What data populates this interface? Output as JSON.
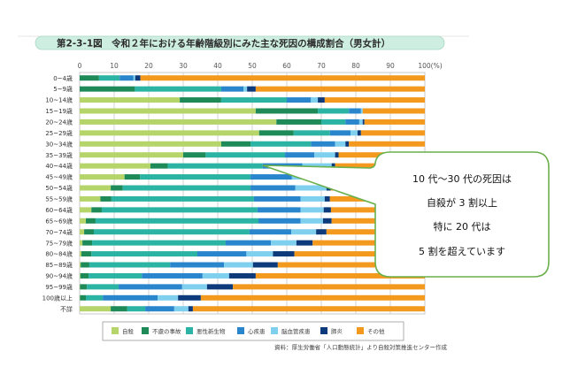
{
  "figure": {
    "title": "第2-3-1図　令和２年における年齢階級別にみた主な死因の構成割合（男女計）",
    "source": "資料：厚生労働省「人口動態統計」より自殺対策推進センター作成"
  },
  "callout": {
    "lines": [
      "10 代～30 代の死因は",
      "自殺が 3 割以上",
      "特に 20 代は",
      "5 割を超えています"
    ]
  },
  "chart_data": {
    "type": "bar",
    "orientation": "horizontal",
    "stacked": true,
    "percent": true,
    "title": "第2-3-1図　令和２年における年齢階級別にみた主な死因の構成割合（男女計）",
    "xlabel": "",
    "ylabel": "",
    "xlim": [
      0,
      100
    ],
    "x_ticks": [
      "0",
      "10",
      "20",
      "30",
      "40",
      "50",
      "60",
      "70",
      "80",
      "90",
      "100(%)"
    ],
    "grid": true,
    "legend_position": "bottom",
    "categories": [
      "0~4歳",
      "5~9歳",
      "10~14歳",
      "15~19歳",
      "20~24歳",
      "25~29歳",
      "30~34歳",
      "35~39歳",
      "40~44歳",
      "45~49歳",
      "50~54歳",
      "55~59歳",
      "60~64歳",
      "65~69歳",
      "70~74歳",
      "75~79歳",
      "80~84歳",
      "85~89歳",
      "90~94歳",
      "95~99歳",
      "100歳以上",
      "不詳"
    ],
    "series": [
      {
        "name": "自殺",
        "color": "#b5d56a",
        "values": [
          0,
          0,
          29,
          51,
          57,
          52,
          41,
          30,
          20.5,
          13,
          9,
          6,
          3.4,
          1.8,
          1.3,
          0.8,
          0.5,
          0.3,
          0.2,
          0.1,
          0.1,
          9
        ]
      },
      {
        "name": "不慮の事故",
        "color": "#1e8a58",
        "values": [
          5.6,
          16,
          12,
          18,
          13,
          10,
          8.5,
          6.5,
          5,
          4.5,
          3.5,
          3.2,
          3,
          2.8,
          2.8,
          2.8,
          2.9,
          2.5,
          2.4,
          2,
          1.7,
          4.8
        ]
      },
      {
        "name": "悪性新生物",
        "color": "#2bb3a3",
        "values": [
          6,
          25,
          19,
          9,
          7,
          10.5,
          17.5,
          23,
          27.5,
          32,
          37,
          41.3,
          45.1,
          47.2,
          45.1,
          38.7,
          30.7,
          23.4,
          15.4,
          9.2,
          4.9,
          5.2
        ]
      },
      {
        "name": "心疾患",
        "color": "#2a86cc",
        "values": [
          4,
          6.5,
          7,
          3.5,
          4,
          6,
          7,
          8.5,
          11.5,
          12,
          13,
          13.5,
          12.5,
          12.2,
          12.1,
          13.1,
          14.2,
          15.6,
          17.6,
          18.4,
          15.9,
          8.4
        ]
      },
      {
        "name": "脳血管疾患",
        "color": "#7fcfee",
        "values": [
          0.5,
          1,
          2,
          0.5,
          1,
          2,
          3,
          6,
          8.5,
          9,
          9,
          7,
          6.7,
          6.5,
          7.2,
          7.4,
          7.7,
          8.4,
          7.7,
          7.2,
          5.9,
          4.1
        ]
      },
      {
        "name": "肺炎",
        "color": "#0d3a7a",
        "values": [
          1.5,
          2.5,
          2,
          0,
          0.5,
          1,
          1,
          1,
          1,
          1.5,
          1.2,
          1.5,
          2.1,
          2.5,
          3,
          4.7,
          6.2,
          7.2,
          7.7,
          7.5,
          6.6,
          1.3
        ]
      },
      {
        "name": "その他",
        "color": "#f39a1e",
        "values": [
          82.4,
          49,
          29,
          18,
          17.5,
          18.5,
          22,
          25,
          26,
          28,
          27.3,
          27.5,
          27.2,
          27,
          28.5,
          32.5,
          37.8,
          42.6,
          49,
          55.6,
          64.9,
          67.2
        ]
      }
    ]
  }
}
